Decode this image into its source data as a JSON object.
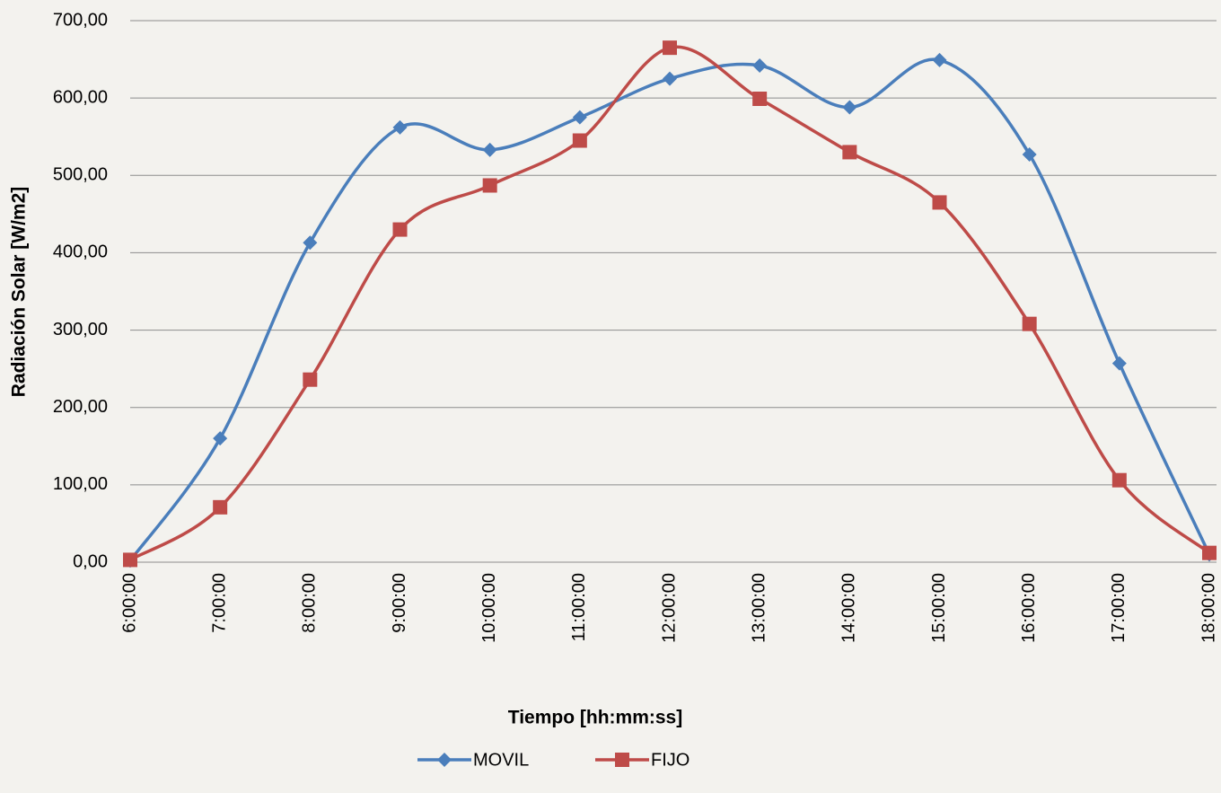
{
  "chart_data": {
    "type": "line",
    "x_label": "Tiempo  [hh:mm:ss]",
    "y_label": "Radiación Solar [W/m2]",
    "categories": [
      "6:00:00",
      "7:00:00",
      "8:00:00",
      "9:00:00",
      "10:00:00",
      "11:00:00",
      "12:00:00",
      "13:00:00",
      "14:00:00",
      "15:00:00",
      "16:00:00",
      "17:00:00",
      "18:00:00"
    ],
    "series": [
      {
        "name": "MOVIL",
        "color": "#4a7ebb",
        "marker": "diamond",
        "values": [
          2,
          160,
          413,
          562,
          533,
          575,
          625,
          642,
          588,
          649,
          527,
          257,
          10
        ]
      },
      {
        "name": "FIJO",
        "color": "#be4b48",
        "marker": "square",
        "values": [
          3,
          71,
          236,
          430,
          487,
          545,
          665,
          599,
          530,
          465,
          308,
          106,
          12
        ]
      }
    ],
    "ylim": [
      0,
      700
    ],
    "yticks": [
      {
        "value": 0,
        "label": "0,00"
      },
      {
        "value": 100,
        "label": "100,00"
      },
      {
        "value": 200,
        "label": "200,00"
      },
      {
        "value": 300,
        "label": "300,00"
      },
      {
        "value": 400,
        "label": "400,00"
      },
      {
        "value": 500,
        "label": "500,00"
      },
      {
        "value": 600,
        "label": "600,00"
      },
      {
        "value": 700,
        "label": "700,00"
      }
    ],
    "grid": true,
    "smooth": true,
    "legend": "bottom"
  }
}
